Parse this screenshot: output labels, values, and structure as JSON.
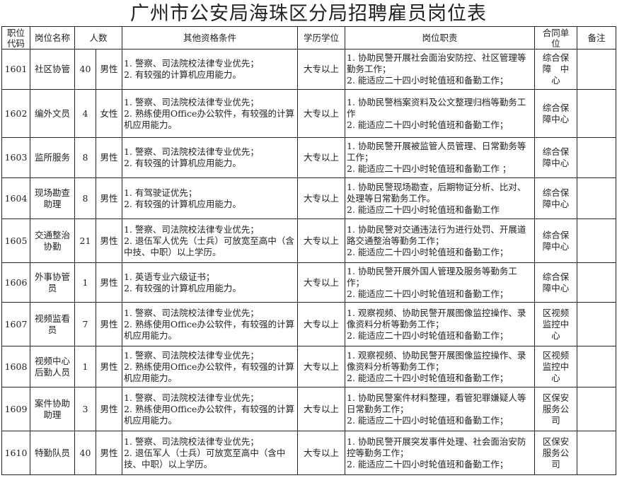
{
  "title": "广州市公安局海珠区分局招聘雇员岗位表",
  "headers": {
    "code": "职位\n代码",
    "name": "岗位名称",
    "count": "人数",
    "conditions": "其他资格条件",
    "education": "学历学位",
    "duties": "岗位职责",
    "unit": "合同单\n位",
    "notes": "备注"
  },
  "rows": [
    {
      "code": "1601",
      "name": "社区协管",
      "count": "40",
      "gender": "男性",
      "conditions": "1. 警察、司法院校法律专业优先；\n2. 有较强的计算机应用能力。",
      "education": "大专以上",
      "duties": "1. 协助民警开展社会面治安防控、社区管理等勤务工作；\n2. 能适应二十四小时轮值班和备勤工作；",
      "unit": "综合保\n障　中\n心",
      "notes": ""
    },
    {
      "code": "1602",
      "name": "编外文员",
      "count": "4",
      "gender": "女性",
      "conditions": "1. 警察、司法院校法律专业优先；\n2. 熟练使用Office办公软件，有较强的计算机应用能力。",
      "education": "大专以上",
      "duties": "1. 协助民警档案资料及公文整理归档等勤务工作\n2. 能适应二十四小时轮值班和备勤工作；",
      "unit": "综合保\n障中心",
      "notes": ""
    },
    {
      "code": "1603",
      "name": "监所服务",
      "count": "8",
      "gender": "男性",
      "conditions": "1. 警察、司法院校法律专业优先；\n2. 有较强的计算机应用能力。",
      "education": "大专以上",
      "duties": "1. 协助民警开展被监管人员管理、日常勤务等工作；\n2. 能适应二十四小时轮值班和备勤工作 ；",
      "unit": "综合保\n障中心",
      "notes": ""
    },
    {
      "code": "1604",
      "name": "现场勘查\n助理",
      "count": "8",
      "gender": "男性",
      "conditions": "1. 有驾驶证优先；\n2. 有较强的计算机应用能力。",
      "education": "大专以上",
      "duties": "1. 协助民警现场勘查，后期物证分析、比对、处理等日常勤务工作。\n2. 能适应二十四小时轮值班和备勤工作",
      "unit": "综合保\n障中心",
      "notes": ""
    },
    {
      "code": "1605",
      "name": "交通整治\n协勤",
      "count": "21",
      "gender": "男性",
      "conditions": "1. 警察、司法院校法律专业优先；\n2. 退伍军人优先（士兵）可放宽至高中（含中技、中职）以上学历。",
      "education": "大专以上",
      "duties": "1. 协助民警对交通违法行为进行处罚、开展道路交通整治等勤务工作；\n2. 能适应二十四小时轮值班和备勤工作；",
      "unit": "综合保\n障中心",
      "notes": ""
    },
    {
      "code": "1606",
      "name": "外事协管\n员",
      "count": "1",
      "gender": "男性",
      "conditions": "1. 英语专业六级证书；\n2. 有较强的计算机应用能力。",
      "education": "大专以上",
      "duties": "1. 协助民警开展外国人管理及服务等勤务工作；\n2. 能适应二十四小时轮值班和备勤工作；",
      "unit": "综合保\n障中心",
      "notes": ""
    },
    {
      "code": "1607",
      "name": "视频监看\n员",
      "count": "7",
      "gender": "男性",
      "conditions": "1. 警察、司法院校法律专业优先；\n2. 熟练使用Office办公软件，有较强的计算机应用能力。",
      "education": "大专以上",
      "duties": "1. 观察视频、协助民警开展图像监控操作、录像资料分析等勤务工作；\n2. 能适应二十四小时轮值班和备勤工作；",
      "unit": "区视频\n监控中\n心",
      "notes": ""
    },
    {
      "code": "1608",
      "name": "视频中心\n后勤人员",
      "count": "1",
      "gender": "男性",
      "conditions": "1. 警察、司法院校法律专业优先；\n2. 熟练使用Office办公软件，有较强的计算机应用能力。",
      "education": "大专以上",
      "duties": "1. 观察视频、协助民警开展图像监控操作、录像资料分析等勤务工作；\n2. 能适应二十四小时轮值班和备勤工作；",
      "unit": "区视频\n监控中\n心",
      "notes": ""
    },
    {
      "code": "1609",
      "name": "案件协助\n助理",
      "count": "3",
      "gender": "男性",
      "conditions": "1. 警察、司法院校法律专业优先；\n2. 熟练使用Office办公软件，有较强的计算机应用能力。",
      "education": "大专以上",
      "duties": "1. 协助民警案件材料整理，看管犯罪嫌疑人等日常勤务工作；\n2. 能适应二十四小时轮值班和备勤工作；",
      "unit": "区保安\n服务公\n司",
      "notes": ""
    },
    {
      "code": "1610",
      "name": "特勤队员",
      "count": "40",
      "gender": "男性",
      "conditions": "1. 警察、司法院校法律专业优先；\n2. 退伍军人（士兵）可放宽至高中（含中技、中职）以上学历。",
      "education": "大专以上",
      "duties": "1. 协助民警开展突发事件处理、社会面治安防控等勤务工作；\n2. 能适应二十四小时轮值班和备勤工作；",
      "unit": "区保安\n服务公\n司",
      "notes": ""
    }
  ]
}
